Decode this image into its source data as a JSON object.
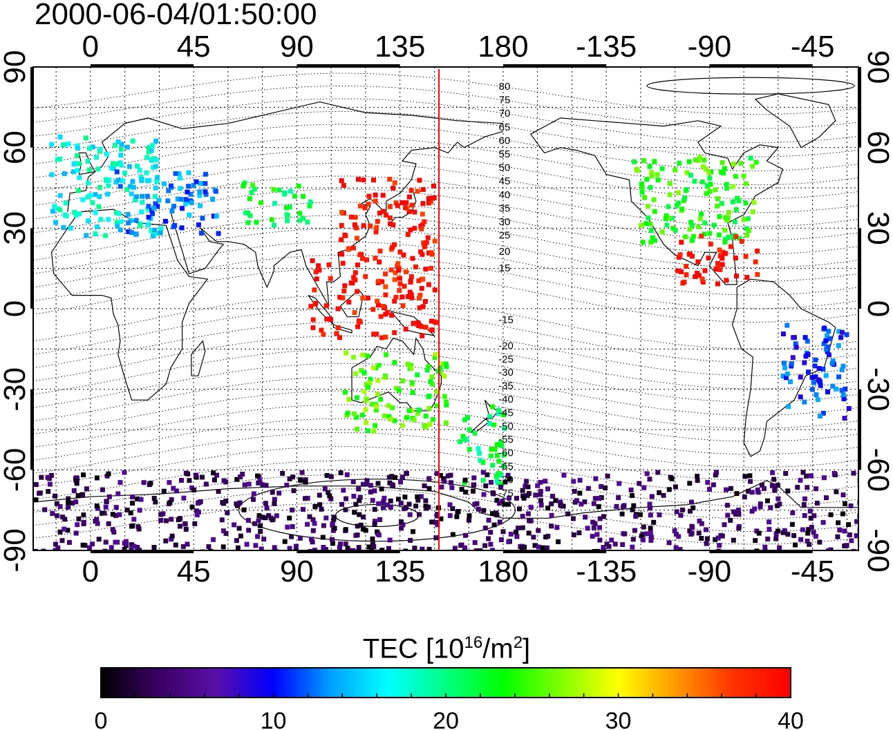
{
  "title": "2000-06-04/01:50:00",
  "axes": {
    "lon_ticks": [
      "0",
      "45",
      "90",
      "135",
      "180",
      "-135",
      "-90",
      "-45"
    ],
    "lat_ticks": [
      "90",
      "60",
      "30",
      "0",
      "-30",
      "-60",
      "-90"
    ]
  },
  "contour_labels": {
    "north": [
      "80",
      "75",
      "70",
      "65",
      "60",
      "55",
      "50",
      "45",
      "40",
      "35",
      "30",
      "25",
      "20",
      "15"
    ],
    "south": [
      "-15",
      "-20",
      "-25",
      "-30",
      "-35",
      "-40",
      "-45",
      "-50",
      "-55",
      "-60",
      "-65",
      "-70",
      "-75"
    ]
  },
  "colorbar": {
    "title_prefix": "TEC  [10",
    "title_exp1": "16",
    "title_mid": "/m",
    "title_exp2": "2",
    "title_suffix": "]",
    "min": 0,
    "max": 40,
    "tick_labels": [
      "0",
      "10",
      "20",
      "30",
      "40"
    ],
    "colors": [
      "#000000",
      "#3a0063",
      "#5a0fa8",
      "#0000ff",
      "#00a0ff",
      "#00ffff",
      "#00ff80",
      "#00ff00",
      "#80ff00",
      "#ffff00",
      "#ff9900",
      "#ff3300",
      "#ff0000"
    ]
  },
  "colors": {
    "terminator_line": "#ff0000",
    "frame": "#000000"
  },
  "chart_data": {
    "type": "heatmap",
    "title": "2000-06-04/01:50:00",
    "value_label": "TEC [10^16/m^2]",
    "value_range": [
      0,
      40
    ],
    "x_label": "",
    "y_label": "",
    "xlim": [
      -25,
      335
    ],
    "ylim": [
      -90,
      90
    ],
    "grid": true,
    "terminator_longitude": 152,
    "regions": [
      {
        "lon_range": [
          -18,
          30
        ],
        "lat_range": [
          28,
          65
        ],
        "tec": 17
      },
      {
        "lon_range": [
          10,
          55
        ],
        "lat_range": [
          28,
          52
        ],
        "tec": 13
      },
      {
        "lon_range": [
          65,
          95
        ],
        "lat_range": [
          32,
          48
        ],
        "tec": 22
      },
      {
        "lon_range": [
          108,
          150
        ],
        "lat_range": [
          20,
          50
        ],
        "tec": 39
      },
      {
        "lon_range": [
          95,
          150
        ],
        "lat_range": [
          -10,
          20
        ],
        "tec": 39
      },
      {
        "lon_range": [
          110,
          155
        ],
        "lat_range": [
          -45,
          -15
        ],
        "tec": 25
      },
      {
        "lon_range": [
          160,
          180
        ],
        "lat_range": [
          -65,
          -35
        ],
        "tec": 21
      },
      {
        "lon_range": [
          235,
          290
        ],
        "lat_range": [
          25,
          58
        ],
        "tec": 24
      },
      {
        "lon_range": [
          255,
          290
        ],
        "lat_range": [
          10,
          28
        ],
        "tec": 39
      },
      {
        "lon_range": [
          300,
          330
        ],
        "lat_range": [
          -40,
          -5
        ],
        "tec": 11
      },
      {
        "lon_range": [
          -25,
          335
        ],
        "lat_range": [
          -90,
          -60
        ],
        "tec": 3
      }
    ]
  }
}
